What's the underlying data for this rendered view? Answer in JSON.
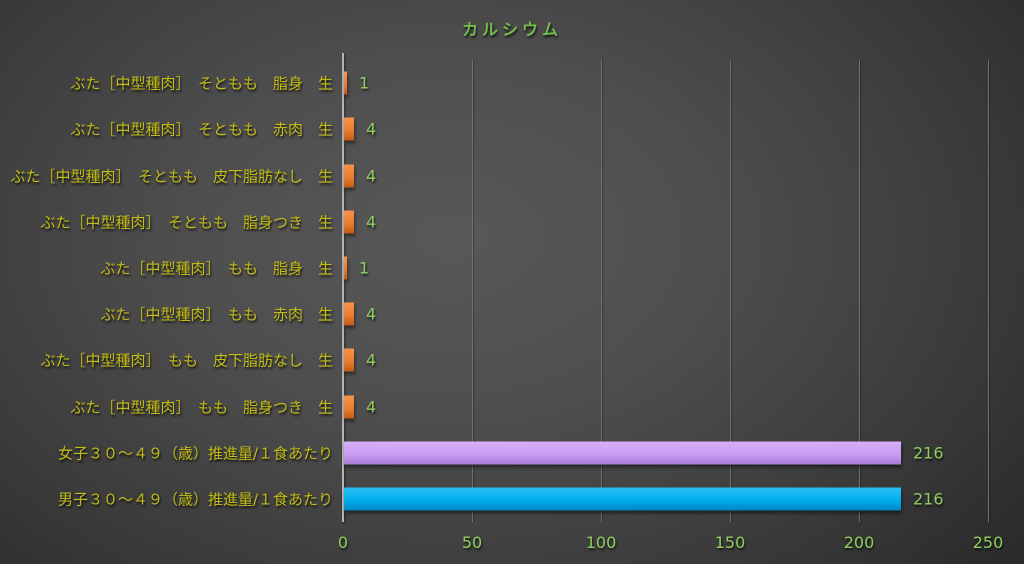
{
  "chart_data": {
    "type": "bar",
    "orientation": "horizontal",
    "title": "カルシウム",
    "categories": [
      "ぶた［中型種肉］　そともも　脂身　生",
      "ぶた［中型種肉］　そともも　赤肉　生",
      "ぶた［中型種肉］　そともも　皮下脂肪なし　生",
      "ぶた［中型種肉］　そともも　脂身つき　生",
      "ぶた［中型種肉］　もも　脂身　生",
      "ぶた［中型種肉］　もも　赤肉　生",
      "ぶた［中型種肉］　もも　皮下脂肪なし　生",
      "ぶた［中型種肉］　もも　脂身つき　生",
      "女子３０～４９（歳）推進量/１食あたり",
      "男子３０～４９（歳）推進量/１食あたり"
    ],
    "values": [
      1,
      4,
      4,
      4,
      1,
      4,
      4,
      4,
      216,
      216
    ],
    "bar_colors": [
      "orange",
      "orange",
      "orange",
      "orange",
      "orange",
      "orange",
      "orange",
      "orange",
      "purple",
      "cyan"
    ],
    "xticks": [
      0,
      50,
      100,
      150,
      200,
      250
    ],
    "xlim": [
      0,
      250
    ],
    "grid": true,
    "value_labels": true,
    "legend": "none"
  },
  "colors": {
    "title_text": "#72bd4e",
    "category_text": "#c3bc17",
    "value_text": "#8ecf5d",
    "axis_text": "#8ecf5d",
    "gridline": "#707070",
    "axis_line": "#b5b5b5",
    "series": {
      "orange": {
        "top": "#f6944a",
        "mid": "#ed7d31",
        "bottom": "#c05c14"
      },
      "purple": {
        "top": "#d7b0f8",
        "mid": "#ca9bf2",
        "bottom": "#a87bd6"
      },
      "cyan": {
        "top": "#2cc0f2",
        "mid": "#00aeef",
        "bottom": "#0085c2"
      }
    }
  }
}
